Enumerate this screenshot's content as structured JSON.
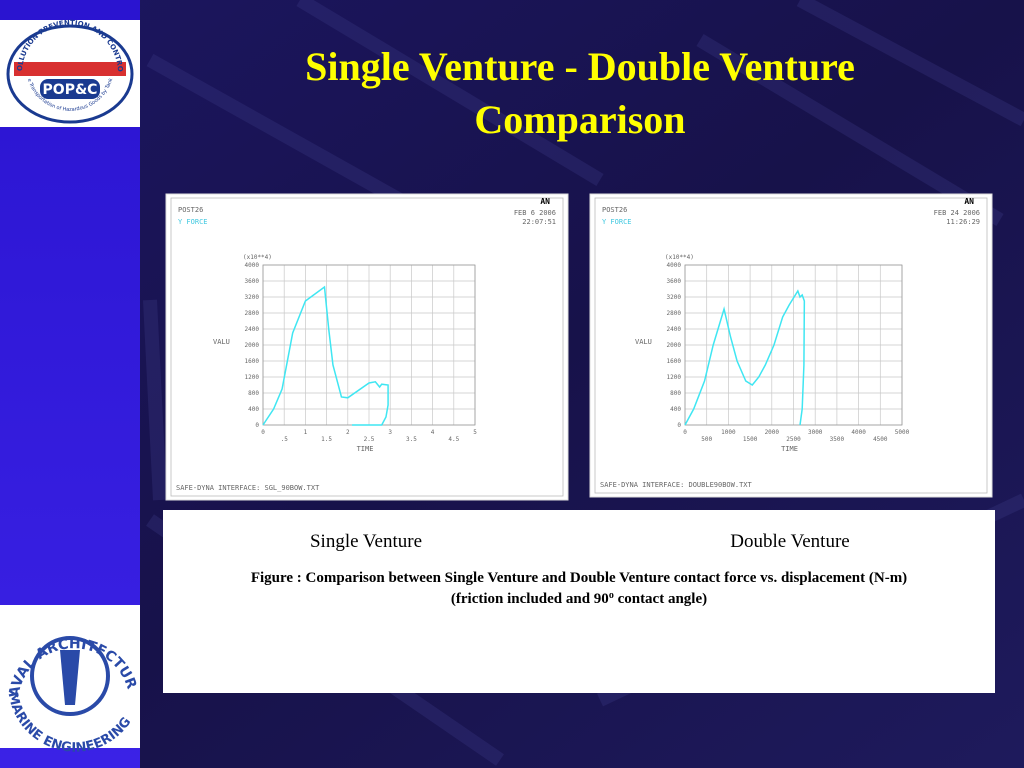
{
  "slide": {
    "title_line1": "Single Venture - Double Venture",
    "title_line2": "Comparison",
    "label_left": "Single Venture",
    "label_right": "Double Venture",
    "caption_line1": "Figure    : Comparison between Single Venture and Double Venture contact force vs. displacement (N-m)",
    "caption_line2_pre": "(friction included and 90",
    "caption_line2_sup": "o",
    "caption_line2_post": " contact angle)"
  },
  "logos": [
    {
      "ring": "POLLUTION PREVENTION AND CONTROL",
      "name": "POP&C",
      "subtitle": "Safe Transportation of Hazardous Goods by Tankers"
    },
    {
      "top": "NAVAL ARCHITECTURE",
      "bottom": "MARINE ENGINEERING"
    }
  ],
  "chart_data": [
    {
      "type": "line",
      "header": "POST26",
      "variable": "Y FORCE",
      "date": "FEB  6 2006",
      "time": "22:07:51",
      "brand": "AN",
      "multiplier": "(x10**4)",
      "ylabel": "VALU",
      "xlabel": "TIME",
      "footer": "SAFE-DYNA INTERFACE: SGL_90BOW.TXT",
      "color": "#3fe6f2",
      "grid": true,
      "xlim": [
        0,
        5
      ],
      "ylim": [
        0,
        4000
      ],
      "xticks": [
        0,
        {
          "value": 0.5,
          "label": ".5"
        },
        1,
        1.5,
        2,
        2.5,
        3,
        3.5,
        4,
        4.5,
        5
      ],
      "yticks": [
        0,
        400,
        800,
        1200,
        1600,
        2000,
        2400,
        2800,
        3200,
        3600,
        4000
      ],
      "x": [
        0,
        0.25,
        0.45,
        0.7,
        1,
        1.45,
        1.55,
        1.65,
        1.85,
        2,
        2.5,
        2.65,
        2.75,
        2.8,
        2.95,
        2.95,
        2.9,
        2.8,
        2.1
      ],
      "values": [
        0,
        400,
        900,
        2300,
        3100,
        3450,
        2400,
        1500,
        700,
        680,
        1050,
        1080,
        950,
        1020,
        1000,
        500,
        200,
        0,
        0
      ]
    },
    {
      "type": "line",
      "header": "POST26",
      "variable": "Y FORCE",
      "date": "FEB 24 2006",
      "time": "11:26:29",
      "brand": "AN",
      "multiplier": "(x10**4)",
      "ylabel": "VALU",
      "xlabel": "TIME",
      "footer": "SAFE-DYNA INTERFACE: DOUBLE90BOW.TXT",
      "color": "#3fe6f2",
      "grid": true,
      "xlim": [
        0,
        5000
      ],
      "ylim": [
        0,
        4000
      ],
      "xticks": [
        0,
        500,
        1000,
        1500,
        2000,
        2500,
        3000,
        3500,
        4000,
        4500,
        5000
      ],
      "yticks": [
        0,
        400,
        800,
        1200,
        1600,
        2000,
        2400,
        2800,
        3200,
        3600,
        4000
      ],
      "x": [
        0,
        200,
        450,
        650,
        900,
        1050,
        1200,
        1400,
        1550,
        1700,
        1850,
        2050,
        2250,
        2400,
        2600,
        2650,
        2700,
        2750,
        2740,
        2700,
        2650
      ],
      "values": [
        0,
        400,
        1100,
        2000,
        2900,
        2200,
        1600,
        1100,
        1000,
        1200,
        1500,
        2000,
        2700,
        3000,
        3350,
        3200,
        3250,
        3100,
        1500,
        400,
        0
      ]
    }
  ]
}
